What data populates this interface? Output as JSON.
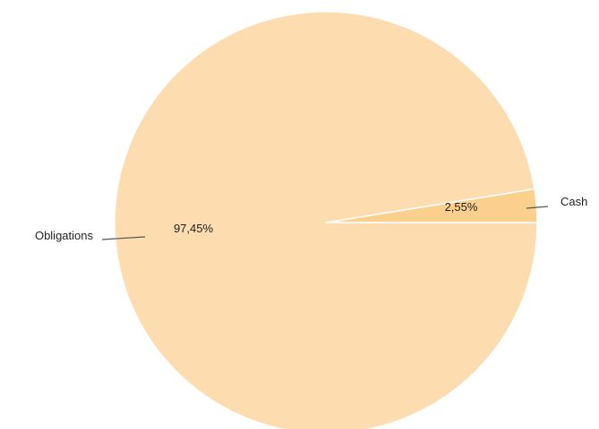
{
  "chart_data": {
    "type": "pie",
    "categories": [
      "Cash",
      "Obligations"
    ],
    "values": [
      2.55,
      97.45
    ],
    "value_labels": [
      "2,55%",
      "97,45%"
    ],
    "colors": [
      "#fbd08c",
      "#fddcaf"
    ],
    "title": "",
    "legend": "none"
  }
}
